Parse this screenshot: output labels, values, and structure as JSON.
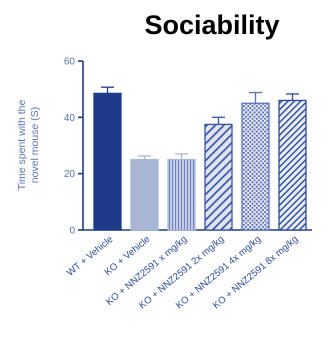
{
  "chart_data": {
    "type": "bar",
    "title": "Sociability",
    "ylabel_lines": [
      "Time spent with the",
      "novel mouse (S)"
    ],
    "xlabel": "",
    "ylim": [
      0,
      60
    ],
    "yticks": [
      0,
      20,
      40,
      60
    ],
    "y_tick_labels": [
      "0",
      "20",
      "40",
      "60"
    ],
    "grid": false,
    "categories": [
      "WT + Vehicle",
      "KO + Vehicle",
      "KO + NNZ2591 x mg/kg",
      "KO + NNZ2591 2x mg/kg",
      "KO + NNZ2591 4x mg/kg",
      "KO + NNZ2591 8x mg/kg"
    ],
    "values": [
      48.5,
      25,
      25,
      37.5,
      45,
      46
    ],
    "errors": [
      2.2,
      1.3,
      2.0,
      2.5,
      3.8,
      2.3
    ],
    "colors": [
      "#1f3a8a",
      "#a9b6d6",
      "#a9b6d6",
      "#3a55a5",
      "#5b73b8",
      "#2c4a9c"
    ],
    "patterns": [
      "solid",
      "solid",
      "vlines",
      "diag",
      "dots",
      "diag-dense"
    ]
  }
}
